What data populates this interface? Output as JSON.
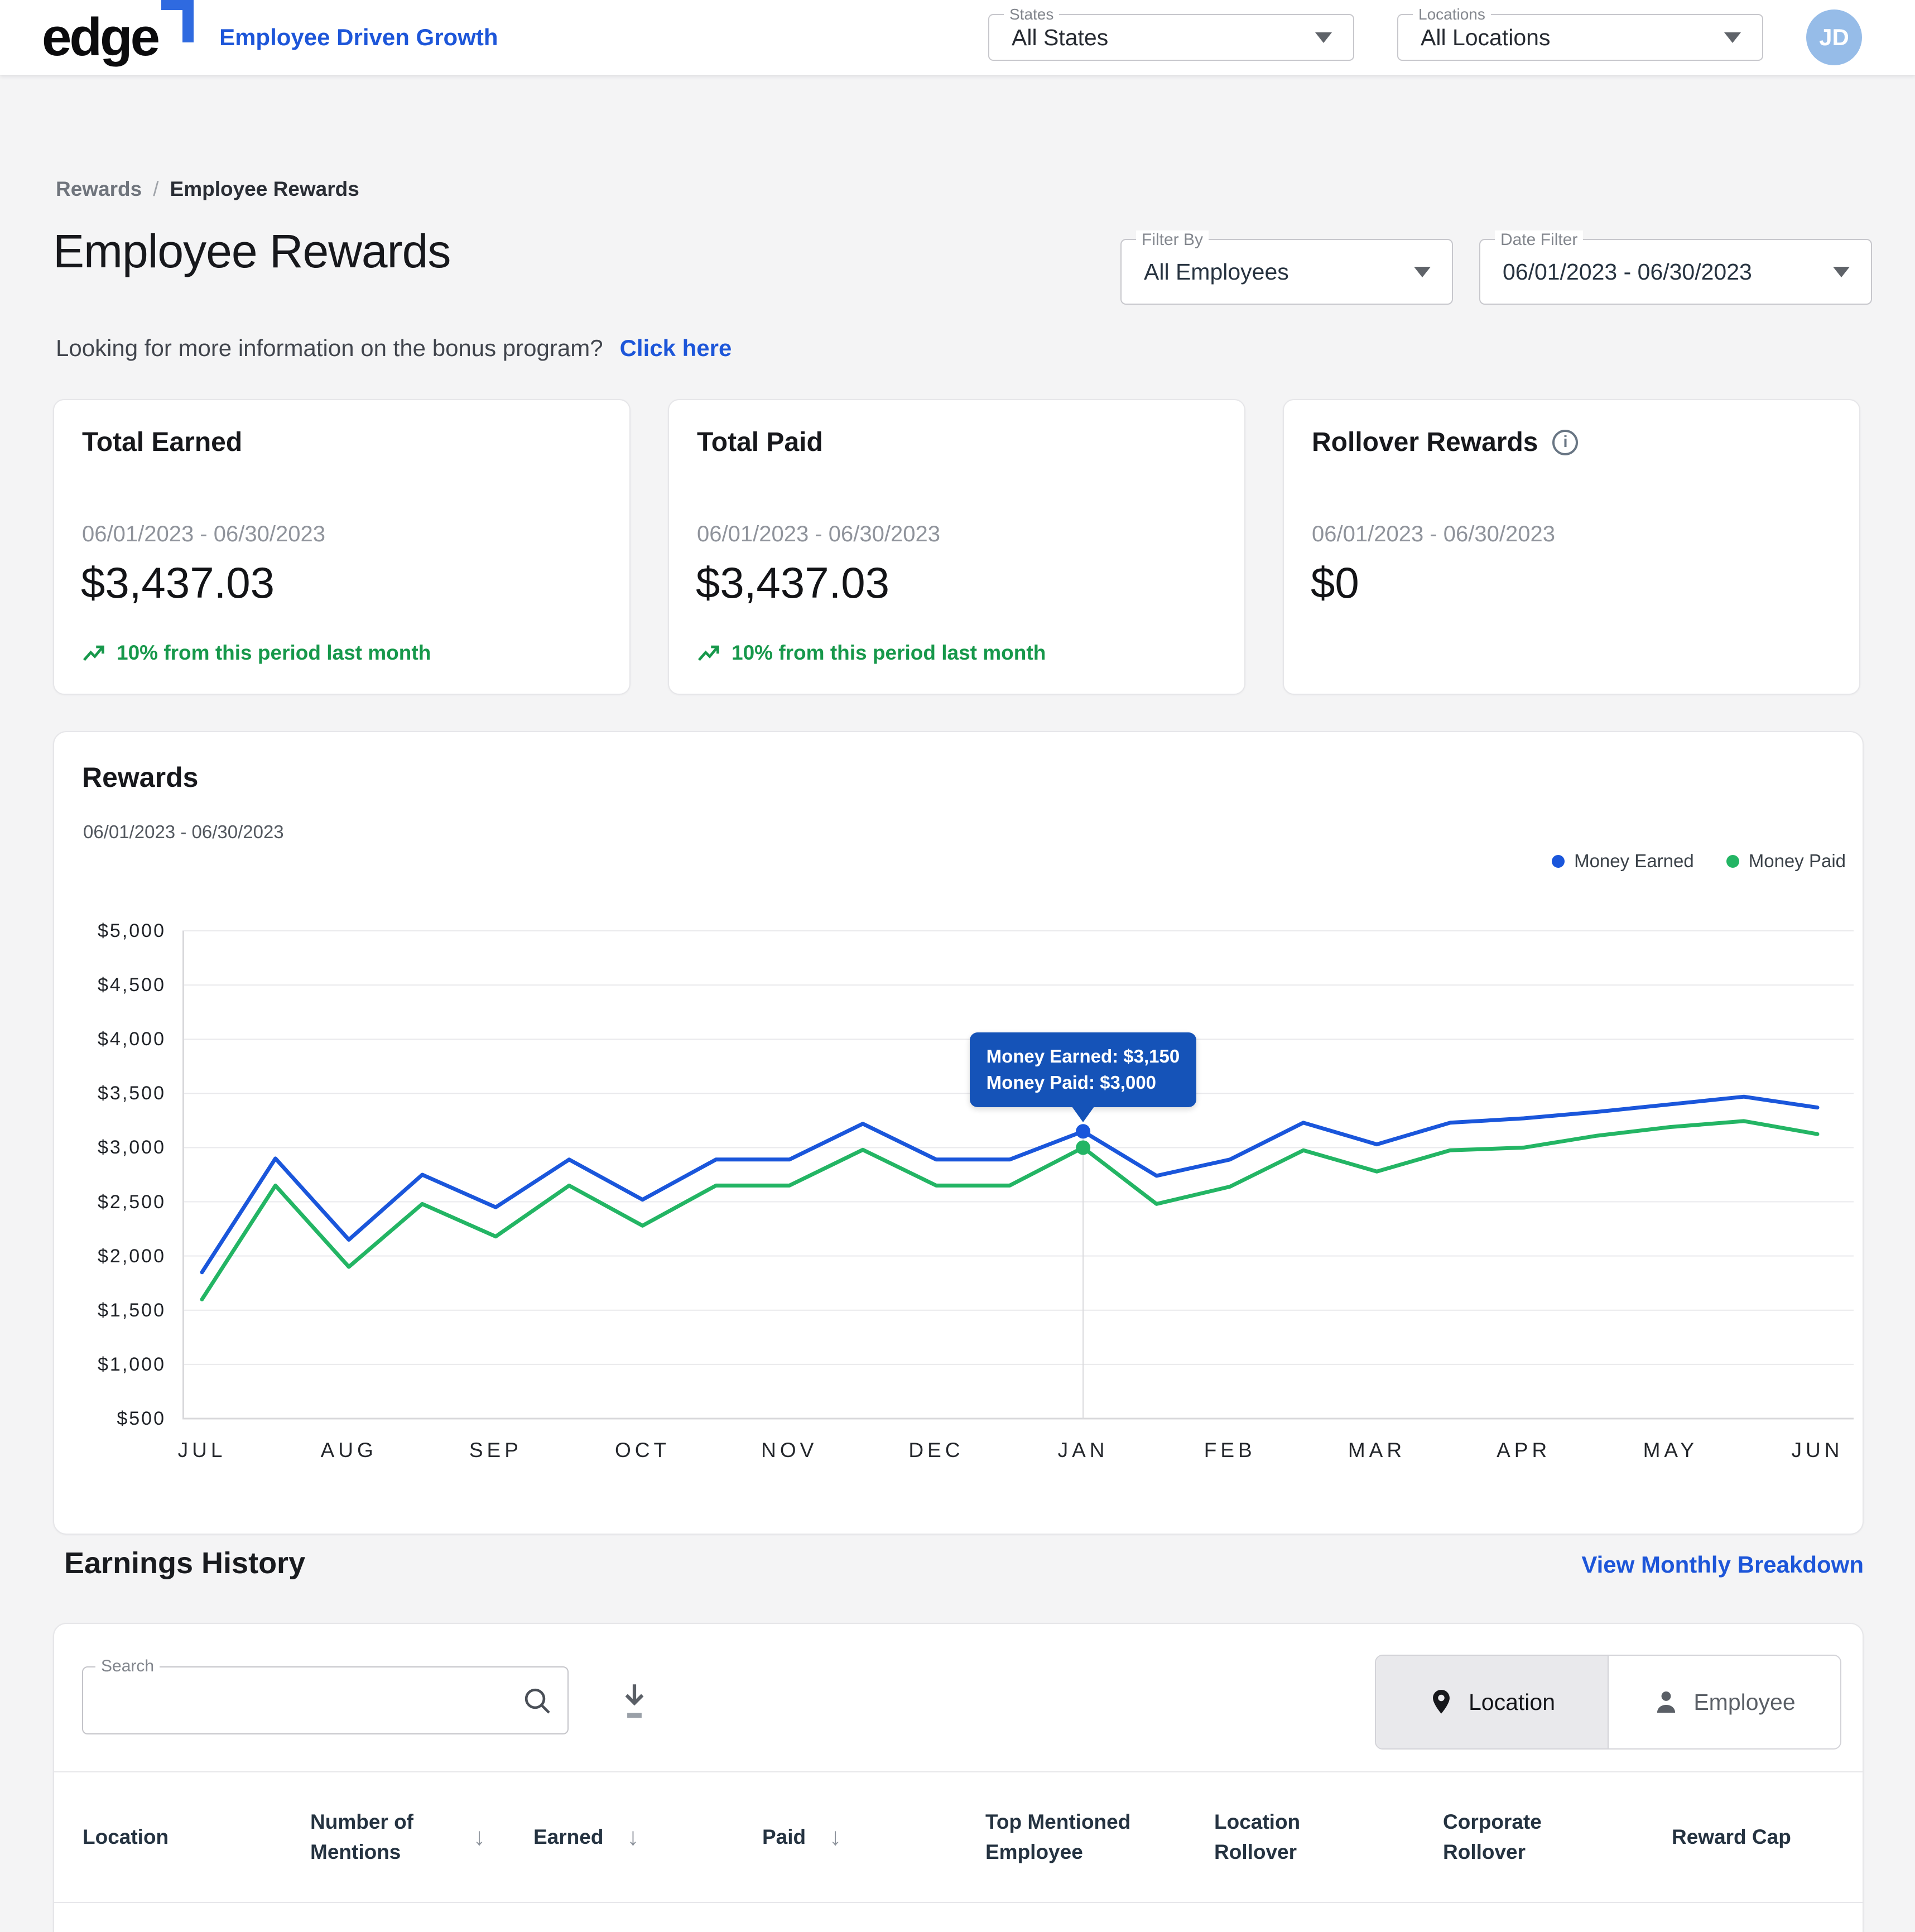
{
  "header": {
    "logo": "edge",
    "tagline": "Employee Driven Growth",
    "states_label": "States",
    "states_value": "All States",
    "locations_label": "Locations",
    "locations_value": "All Locations",
    "avatar_initials": "JD"
  },
  "breadcrumb": {
    "parent": "Rewards",
    "current": "Employee Rewards"
  },
  "page": {
    "title": "Employee Rewards",
    "subtitle": "Looking for more information on the bonus program?",
    "subtitle_link": "Click here",
    "filter_by_label": "Filter By",
    "filter_by_value": "All Employees",
    "date_filter_label": "Date Filter",
    "date_filter_value": "06/01/2023 - 06/30/2023"
  },
  "cards": {
    "total_earned": {
      "title": "Total Earned",
      "date_range": "06/01/2023 - 06/30/2023",
      "amount": "$3,437.03",
      "trend": "10% from this period last month"
    },
    "total_paid": {
      "title": "Total Paid",
      "date_range": "06/01/2023 - 06/30/2023",
      "amount": "$3,437.03",
      "trend": "10% from this period last month"
    },
    "rollover": {
      "title": "Rollover Rewards",
      "date_range": "06/01/2023 - 06/30/2023",
      "amount": "$0"
    }
  },
  "chart_data": {
    "type": "line",
    "title": "Rewards",
    "subtitle": "06/01/2023 - 06/30/2023",
    "x_months": [
      "JUL",
      "AUG",
      "SEP",
      "OCT",
      "NOV",
      "DEC",
      "JAN",
      "FEB",
      "MAR",
      "APR",
      "MAY",
      "JUN"
    ],
    "points_per_month": 2,
    "ylim": [
      500,
      5000
    ],
    "ytick_step": 500,
    "ytick_prefix": "$",
    "grid": "horizontal",
    "legend_position": "top-right",
    "series": [
      {
        "name": "Money Earned",
        "color": "#1a56db",
        "values": [
          1850,
          2900,
          2150,
          2750,
          2450,
          2890,
          2520,
          2890,
          2890,
          3220,
          2890,
          2890,
          3150,
          2740,
          2890,
          3230,
          3030,
          3230,
          3270,
          3330,
          3400,
          3470,
          3370
        ]
      },
      {
        "name": "Money Paid",
        "color": "#23b564",
        "values": [
          1600,
          2650,
          1900,
          2480,
          2180,
          2650,
          2280,
          2650,
          2650,
          2980,
          2650,
          2650,
          3000,
          2480,
          2640,
          2975,
          2780,
          2975,
          3000,
          3110,
          3190,
          3245,
          3125
        ]
      }
    ],
    "tooltip": {
      "index": 12,
      "month": "JAN",
      "lines": [
        "Money Earned: $3,150",
        "Money Paid: $3,000"
      ]
    }
  },
  "earnings": {
    "title": "Earnings History",
    "link": "View Monthly Breakdown",
    "search_label": "Search",
    "search_value": "",
    "toggle": {
      "location": "Location",
      "employee": "Employee",
      "active": "Location"
    },
    "columns": [
      {
        "label": "Location",
        "sortable": false
      },
      {
        "label": "Number of Mentions",
        "sortable": true
      },
      {
        "label": "Earned",
        "sortable": true
      },
      {
        "label": "Paid",
        "sortable": true
      },
      {
        "label": "Top Mentioned Employee",
        "sortable": false
      },
      {
        "label": "Location Rollover",
        "sortable": false
      },
      {
        "label": "Corporate Rollover",
        "sortable": false
      },
      {
        "label": "Reward Cap",
        "sortable": false
      }
    ]
  },
  "colors": {
    "accent_blue": "#1d56d9",
    "line_blue": "#1a56db",
    "line_green": "#23b564",
    "tooltip_blue": "#1553b8",
    "trend_green": "#17984b",
    "avatar_blue": "#96bce8",
    "page_bg": "#f4f4f5"
  }
}
